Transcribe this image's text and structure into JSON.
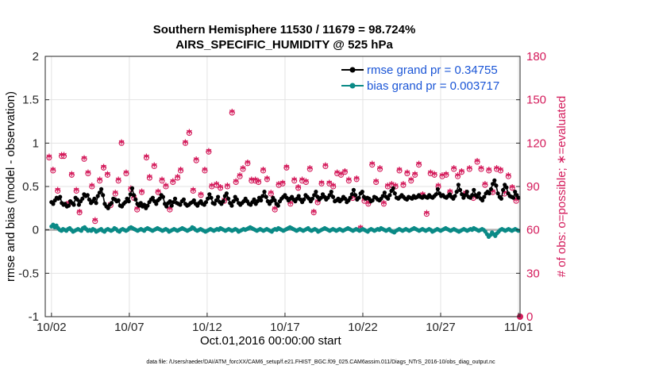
{
  "chart_data": {
    "type": "line",
    "title": "Southern Hemisphere 11530 / 11679 = 98.724%",
    "subtitle": "AIRS_SPECIFIC_HUMIDITY @ 525 hPa",
    "xlabel": "Oct.01,2016 00:00:00 start",
    "ylabel_left": "rmse and bias (model - observation)",
    "ylabel_right": "# of obs: o=possible; ∗=evaluated",
    "footer": "data file: /Users/raeder/DAI/ATM_forcXX/CAM6_setup/f.e21.FHIST_BGC.f09_025.CAM6assim.011/Diags_NTrS_2016-10/obs_diag_output.nc",
    "x_ticks": [
      "10/02",
      "10/07",
      "10/12",
      "10/17",
      "10/22",
      "10/27",
      "11/01"
    ],
    "x_tick_days": [
      1,
      6,
      11,
      16,
      21,
      26,
      31
    ],
    "xlim": [
      0.6,
      31.1
    ],
    "ylim_left": [
      -1,
      2
    ],
    "y_ticks_left": [
      "-1",
      "-0.5",
      "0",
      "0.5",
      "1",
      "1.5",
      "2"
    ],
    "ylim_right": [
      0,
      180
    ],
    "y_ticks_right": [
      "0",
      "30",
      "60",
      "90",
      "120",
      "150",
      "180"
    ],
    "grid": true,
    "legend_position": "top-right",
    "colors": {
      "rmse": "#000000",
      "bias": "#0a8a86",
      "obs": "#d41b5b",
      "legend_text": "#1a55d6",
      "zero_line": "#b0b0b0"
    },
    "series": [
      {
        "name": "rmse grand pr = 0.34755",
        "key": "rmse",
        "axis": "left",
        "values": [
          0.32,
          0.3,
          0.34,
          0.37,
          0.36,
          0.38,
          0.31,
          0.29,
          0.3,
          0.27,
          0.28,
          0.33,
          0.31,
          0.29,
          0.37,
          0.35,
          0.29,
          0.33,
          0.36,
          0.41,
          0.39,
          0.4,
          0.35,
          0.31,
          0.33,
          0.36,
          0.31,
          0.39,
          0.43,
          0.47,
          0.4,
          0.3,
          0.27,
          0.25,
          0.29,
          0.31,
          0.36,
          0.35,
          0.33,
          0.34,
          0.28,
          0.27,
          0.3,
          0.32,
          0.36,
          0.33,
          0.41,
          0.48,
          0.4,
          0.35,
          0.3,
          0.28,
          0.31,
          0.27,
          0.29,
          0.25,
          0.28,
          0.32,
          0.35,
          0.37,
          0.33,
          0.3,
          0.34,
          0.36,
          0.4,
          0.38,
          0.3,
          0.27,
          0.31,
          0.33,
          0.28,
          0.32,
          0.36,
          0.31,
          0.3,
          0.29,
          0.33,
          0.35,
          0.3,
          0.28,
          0.29,
          0.31,
          0.32,
          0.34,
          0.3,
          0.28,
          0.31,
          0.33,
          0.3,
          0.29,
          0.32,
          0.36,
          0.41,
          0.37,
          0.31,
          0.3,
          0.34,
          0.38,
          0.32,
          0.3,
          0.33,
          0.39,
          0.42,
          0.36,
          0.31,
          0.28,
          0.33,
          0.38,
          0.35,
          0.31,
          0.29,
          0.31,
          0.33,
          0.36,
          0.33,
          0.3,
          0.29,
          0.32,
          0.35,
          0.3,
          0.33,
          0.37,
          0.34,
          0.39,
          0.44,
          0.38,
          0.33,
          0.3,
          0.33,
          0.37,
          0.34,
          0.3,
          0.28,
          0.33,
          0.36,
          0.38,
          0.4,
          0.37,
          0.34,
          0.36,
          0.38,
          0.35,
          0.33,
          0.36,
          0.39,
          0.35,
          0.32,
          0.35,
          0.4,
          0.38,
          0.36,
          0.33,
          0.36,
          0.4,
          0.44,
          0.38,
          0.35,
          0.37,
          0.41,
          0.38,
          0.35,
          0.37,
          0.4,
          0.44,
          0.38,
          0.33,
          0.34,
          0.36,
          0.33,
          0.35,
          0.38,
          0.36,
          0.32,
          0.34,
          0.37,
          0.41,
          0.46,
          0.4,
          0.35,
          0.37,
          0.42,
          0.44,
          0.38,
          0.36,
          0.37,
          0.36,
          0.33,
          0.34,
          0.38,
          0.37,
          0.35,
          0.34,
          0.36,
          0.39,
          0.43,
          0.38,
          0.36,
          0.4,
          0.45,
          0.48,
          0.42,
          0.37,
          0.36,
          0.38,
          0.4,
          0.38,
          0.36,
          0.35,
          0.38,
          0.37,
          0.36,
          0.39,
          0.37,
          0.38,
          0.4,
          0.38,
          0.37,
          0.39,
          0.38,
          0.37,
          0.4,
          0.38,
          0.37,
          0.39,
          0.41,
          0.47,
          0.42,
          0.39,
          0.4,
          0.38,
          0.37,
          0.39,
          0.41,
          0.38,
          0.36,
          0.39,
          0.44,
          0.52,
          0.46,
          0.41,
          0.37,
          0.4,
          0.44,
          0.38,
          0.37,
          0.4,
          0.46,
          0.4,
          0.38,
          0.42,
          0.36,
          0.34,
          0.38,
          0.42,
          0.44,
          0.42,
          0.47,
          0.53,
          0.57,
          0.51,
          0.42,
          0.38,
          0.36,
          0.46,
          0.52,
          0.49,
          0.42,
          0.39,
          0.38,
          0.37,
          0.44,
          0.4,
          0.37
        ]
      },
      {
        "name": "bias grand pr = 0.003717",
        "key": "bias",
        "axis": "left",
        "values": [
          0.04,
          0.06,
          0.03,
          0.05,
          0.02,
          0.0,
          -0.01,
          0.01,
          0.0,
          -0.01,
          0.01,
          0.02,
          0.0,
          -0.02,
          -0.01,
          0.0,
          0.01,
          0.0,
          -0.01,
          0.02,
          0.03,
          0.01,
          -0.01,
          0.0,
          -0.01,
          0.01,
          0.0,
          -0.02,
          -0.01,
          0.0,
          0.01,
          -0.01,
          -0.02,
          0.0,
          0.01,
          0.0,
          -0.01,
          0.0,
          0.02,
          0.01,
          -0.01,
          -0.02,
          0.0,
          0.01,
          0.0,
          -0.01,
          0.0,
          0.02,
          0.03,
          0.02,
          0.01,
          0.0,
          -0.01,
          0.0,
          0.01,
          0.0,
          -0.01,
          0.01,
          0.02,
          0.01,
          0.0,
          -0.01,
          0.0,
          0.01,
          0.02,
          0.01,
          0.0,
          -0.01,
          0.0,
          0.01,
          0.0,
          -0.02,
          -0.01,
          0.0,
          0.01,
          0.0,
          -0.01,
          0.0,
          0.01,
          0.02,
          0.01,
          0.0,
          -0.01,
          0.0,
          0.01,
          0.03,
          0.02,
          0.0,
          -0.01,
          0.0,
          0.01,
          0.0,
          -0.01,
          -0.02,
          -0.01,
          0.0,
          0.01,
          0.0,
          -0.01,
          0.0,
          0.01,
          0.0,
          0.02,
          0.01,
          0.0,
          -0.01,
          0.0,
          0.01,
          0.0,
          -0.01,
          0.0,
          0.01,
          0.0,
          -0.02,
          -0.01,
          0.0,
          0.01,
          0.0,
          0.01,
          0.02,
          0.03,
          0.02,
          0.01,
          0.0,
          -0.01,
          0.0,
          0.01,
          0.0,
          -0.01,
          0.0,
          0.01,
          0.0,
          -0.01,
          -0.02,
          0.0,
          0.01,
          0.0,
          0.02,
          0.01,
          0.0,
          -0.01,
          0.0,
          0.01,
          0.02,
          0.03,
          0.02,
          0.01,
          0.0,
          -0.01,
          0.0,
          0.01,
          0.0,
          -0.01,
          0.0,
          0.01,
          0.02,
          0.0,
          -0.01,
          0.0,
          0.01,
          0.0,
          -0.02,
          -0.01,
          0.0,
          0.01,
          0.02,
          0.01,
          0.0,
          -0.01,
          0.0,
          0.01,
          0.0,
          -0.01,
          0.0,
          0.01,
          0.0,
          -0.01,
          0.0,
          0.01,
          0.02,
          0.01,
          0.0,
          -0.01,
          0.0,
          0.01,
          0.0,
          -0.01,
          0.0,
          0.01,
          0.0,
          -0.01,
          -0.02,
          0.0,
          0.01,
          0.0,
          -0.01,
          0.0,
          0.01,
          0.0,
          0.02,
          0.01,
          0.0,
          -0.01,
          0.0,
          0.01,
          -0.01,
          -0.02,
          -0.03,
          -0.01,
          0.0,
          0.01,
          0.0,
          -0.01,
          0.0,
          0.01,
          0.0,
          -0.01,
          0.0,
          0.01,
          0.02,
          0.01,
          0.0,
          -0.01,
          0.0,
          0.01,
          0.0,
          -0.01,
          0.0,
          0.01,
          0.0,
          -0.02,
          -0.01,
          0.0,
          0.01,
          0.0,
          -0.01,
          0.0,
          0.01,
          0.02,
          0.01,
          0.0,
          -0.01,
          0.0,
          0.01,
          0.0,
          -0.01,
          -0.02,
          -0.01,
          0.0,
          0.01,
          0.0,
          -0.01,
          0.0,
          0.01,
          0.0,
          0.02,
          0.01,
          0.0,
          -0.01,
          0.0,
          0.01,
          0.0,
          -0.02,
          -0.05,
          -0.08,
          -0.06,
          -0.03,
          -0.05,
          -0.07,
          -0.04,
          -0.02,
          0.0,
          0.01,
          0.0,
          -0.01,
          0.0,
          0.01,
          0.0,
          -0.01,
          0.0,
          0.01,
          0.0,
          -0.01
        ]
      }
    ],
    "obs_counts": {
      "name": "# of obs",
      "axis": "right",
      "days": [
        0.85,
        1.1,
        1.4,
        1.65,
        1.8,
        2.1,
        2.3,
        2.6,
        2.8,
        3.1,
        3.35,
        3.6,
        3.8,
        4.1,
        4.35,
        4.6,
        4.8,
        5.1,
        5.3,
        5.5,
        5.8,
        6.1,
        6.3,
        6.5,
        6.8,
        7.1,
        7.3,
        7.6,
        7.85,
        8.1,
        8.35,
        8.6,
        8.8,
        9.1,
        9.3,
        9.6,
        9.85,
        10.1,
        10.3,
        10.6,
        10.85,
        11.1,
        11.3,
        11.6,
        11.85,
        12.1,
        12.3,
        12.6,
        12.85,
        13.1,
        13.3,
        13.6,
        13.85,
        14.1,
        14.3,
        14.6,
        14.85,
        15.1,
        15.35,
        15.6,
        15.85,
        16.1,
        16.35,
        16.6,
        16.85,
        17.1,
        17.35,
        17.6,
        17.85,
        18.1,
        18.35,
        18.6,
        18.85,
        19.1,
        19.35,
        19.6,
        19.85,
        20.1,
        20.35,
        20.6,
        20.85,
        21.1,
        21.35,
        21.6,
        21.85,
        22.1,
        22.35,
        22.6,
        22.85,
        23.1,
        23.35,
        23.6,
        23.85,
        24.1,
        24.35,
        24.6,
        24.85,
        25.1,
        25.35,
        25.6,
        25.85,
        26.1,
        26.35,
        26.6,
        26.85,
        27.1,
        27.35,
        27.6,
        27.85,
        28.1,
        28.35,
        28.6,
        28.85,
        29.1,
        29.35,
        29.6,
        29.85,
        30.1,
        30.35,
        30.6,
        30.85
      ],
      "counts": [
        110,
        101,
        87,
        111,
        111,
        78,
        98,
        87,
        72,
        109,
        99,
        90,
        66,
        94,
        103,
        98,
        77,
        85,
        94,
        120,
        99,
        88,
        82,
        74,
        86,
        110,
        96,
        104,
        86,
        94,
        90,
        74,
        93,
        96,
        101,
        120,
        127,
        87,
        108,
        84,
        101,
        114,
        90,
        91,
        89,
        80,
        90,
        141,
        93,
        97,
        102,
        106,
        94,
        94,
        93,
        101,
        95,
        85,
        74,
        91,
        92,
        103,
        78,
        94,
        89,
        94,
        93,
        102,
        72,
        79,
        92,
        104,
        92,
        90,
        99,
        98,
        100,
        94,
        82,
        95,
        61,
        80,
        78,
        105,
        93,
        102,
        78,
        90,
        91,
        90,
        101,
        91,
        99,
        94,
        98,
        105,
        84,
        71,
        99,
        98,
        90,
        97,
        98,
        86,
        102,
        97,
        100,
        85,
        102,
        82,
        107,
        102,
        91,
        101,
        86,
        102,
        101,
        85,
        97,
        89,
        80
      ]
    }
  }
}
